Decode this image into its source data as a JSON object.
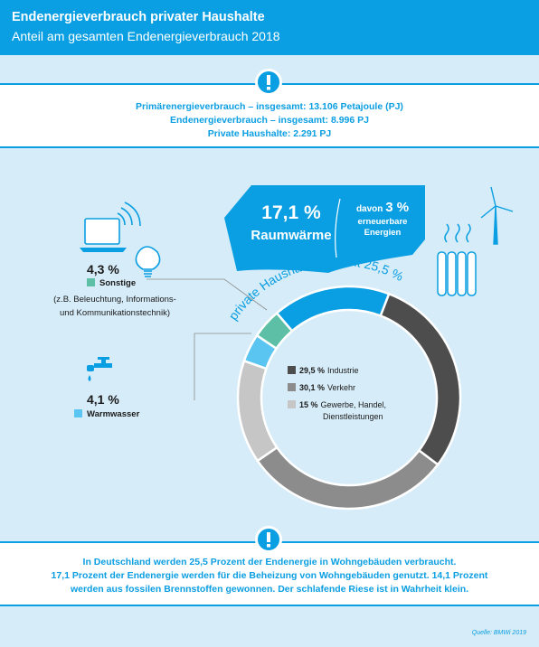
{
  "title": "Endenergieverbrauch privater Haushalte",
  "subtitle": "Anteil am gesamten Endenergieverbrauch 2018",
  "info_top": [
    "Primärenergieverbrauch – insgesamt: 13.106 Petajoule (PJ)",
    "Endenergieverbrauch – insgesamt: 8.996 PJ",
    "Private Haushalte: 2.291 PJ"
  ],
  "info_bottom": [
    "In Deutschland werden 25,5 Prozent der Endenergie in Wohngebäuden verbraucht.",
    "17,1 Prozent der Endenergie werden für die Beheizung von Wohngebäuden genutzt. 14,1 Prozent",
    "werden aus fossilen Brennstoffen gewonnen. Der schlafende Riese ist in Wahrheit klein."
  ],
  "source": "Quelle: BMWi 2019",
  "colors": {
    "brand_blue": "#0a9ee2",
    "light_blue": "#5bc5f2",
    "teal": "#5cbfa6",
    "industrie": "#4d4d4d",
    "verkehr": "#8c8c8c",
    "gewerbe": "#c6c6c6"
  },
  "icons": [
    "exclamation-icon",
    "laptop-icon",
    "lightbulb-icon",
    "faucet-icon",
    "radiator-icon",
    "wind-turbine-icon"
  ],
  "chart_data": {
    "type": "pie",
    "style": "donut",
    "unit": "%",
    "slices": [
      {
        "label": "Raumwärme",
        "value": 17.1,
        "pct_label": "17,1 %",
        "group": "private Haushalte"
      },
      {
        "label": "Sonstige",
        "value": 4.3,
        "pct_label": "4,3 %",
        "group": "private Haushalte",
        "detail": "(z.B. Beleuchtung, Informations- und Kommunikationstechnik)"
      },
      {
        "label": "Warmwasser",
        "value": 4.1,
        "pct_label": "4,1 %",
        "group": "private Haushalte"
      },
      {
        "label": "Industrie",
        "value": 29.5,
        "pct_label": "29,5 %"
      },
      {
        "label": "Verkehr",
        "value": 30.1,
        "pct_label": "30,1 %"
      },
      {
        "label": "Gewerbe, Handel, Dienstleistungen",
        "value": 15,
        "pct_label": "15 %"
      }
    ],
    "group_label": "private Haushalte gesamt 25,5 %",
    "raumwaerme_note": {
      "prefix": "davon",
      "value": "3 %",
      "text": "erneuerbare Energien"
    },
    "legend": [
      {
        "value": "29,5 %",
        "label": "Industrie"
      },
      {
        "value": "30,1 %",
        "label": "Verkehr"
      },
      {
        "value": "15 %",
        "label": "Gewerbe, Handel,",
        "label2": "Dienstleistungen"
      }
    ]
  }
}
